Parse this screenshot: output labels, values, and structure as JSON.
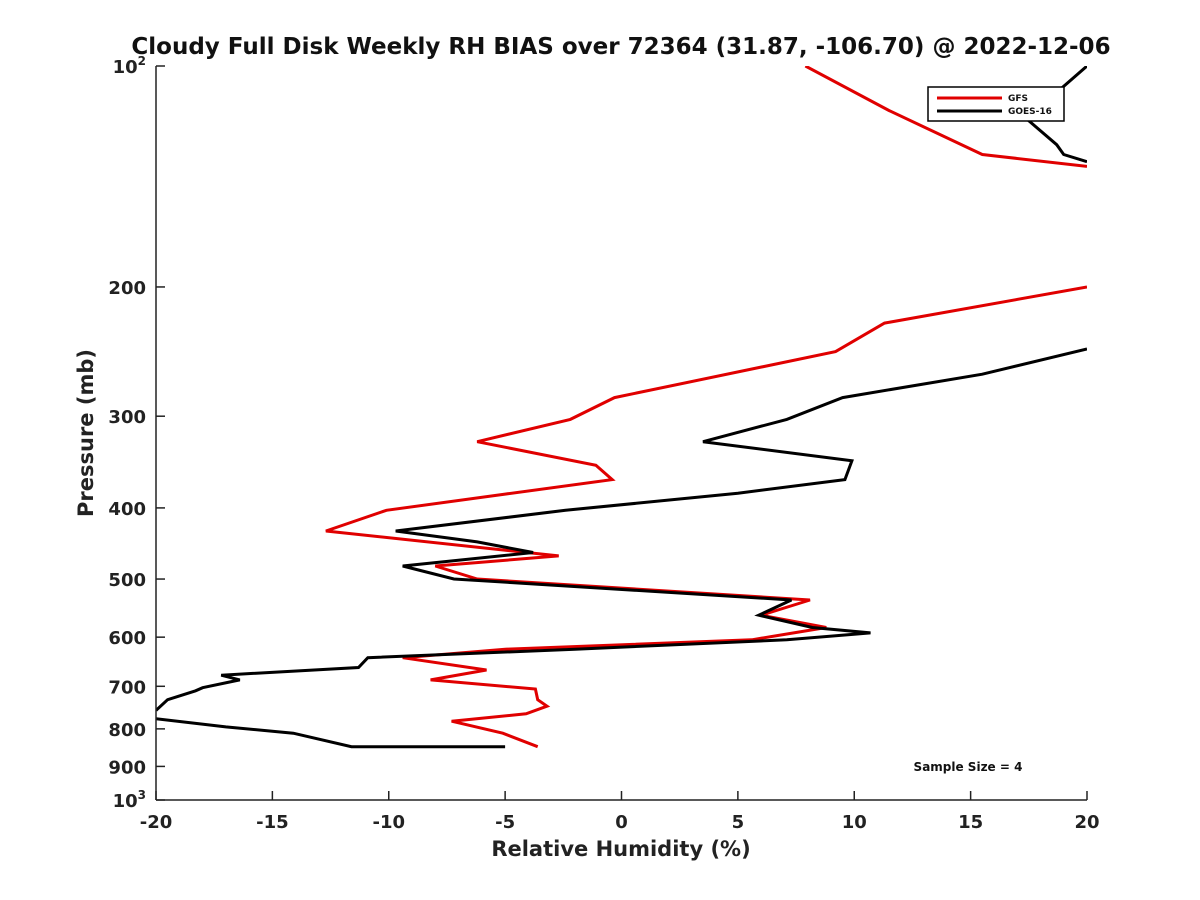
{
  "chart_data": {
    "type": "line",
    "title": "Cloudy Full Disk Weekly RH BIAS over 72364 (31.87, -106.70) @ 2022-12-06",
    "xlabel": "Relative Humidity (%)",
    "ylabel": "Pressure (mb)",
    "xlim": [
      -20,
      20
    ],
    "ylim": [
      100,
      1000
    ],
    "yscale": "log",
    "y_reversed": true,
    "x_ticks": [
      -20,
      -15,
      -10,
      -5,
      0,
      5,
      10,
      15,
      20
    ],
    "x_tick_labels": [
      "-20",
      "-15",
      "-10",
      "-5",
      "0",
      "5",
      "10",
      "15",
      "20"
    ],
    "y_ticks": [
      100,
      200,
      300,
      400,
      500,
      600,
      700,
      800,
      900,
      1000
    ],
    "y_tick_labels": [
      {
        "base": "10",
        "exp": "2"
      },
      {
        "base": "200",
        "exp": ""
      },
      {
        "base": "300",
        "exp": ""
      },
      {
        "base": "400",
        "exp": ""
      },
      {
        "base": "500",
        "exp": ""
      },
      {
        "base": "600",
        "exp": ""
      },
      {
        "base": "700",
        "exp": ""
      },
      {
        "base": "800",
        "exp": ""
      },
      {
        "base": "900",
        "exp": ""
      },
      {
        "base": "10",
        "exp": "3"
      }
    ],
    "legend_position": "top-right",
    "annotation": "Sample Size = 4",
    "series": [
      {
        "name": "GFS",
        "color": "#e00000",
        "points": [
          [
            7.9,
            100
          ],
          [
            11.5,
            115
          ],
          [
            15.5,
            132
          ],
          [
            20.0,
            137
          ],
          [
            null,
            160
          ],
          [
            20.0,
            200
          ],
          [
            11.3,
            224
          ],
          [
            9.2,
            245
          ],
          [
            -0.3,
            283
          ],
          [
            -2.2,
            303
          ],
          [
            -6.2,
            325
          ],
          [
            -1.1,
            350
          ],
          [
            -0.4,
            366
          ],
          [
            -5.0,
            383
          ],
          [
            -10.1,
            403
          ],
          [
            -12.7,
            430
          ],
          [
            -2.7,
            465
          ],
          [
            -8.0,
            480
          ],
          [
            -6.2,
            500
          ],
          [
            8.1,
            534
          ],
          [
            6.0,
            560
          ],
          [
            8.8,
            582
          ],
          [
            5.6,
            605
          ],
          [
            -5.0,
            623
          ],
          [
            -9.4,
            640
          ],
          [
            -5.8,
            665
          ],
          [
            -8.2,
            686
          ],
          [
            -3.7,
            706
          ],
          [
            -3.6,
            730
          ],
          [
            -3.2,
            745
          ],
          [
            -4.1,
            763
          ],
          [
            -7.3,
            781
          ],
          [
            -5.1,
            811
          ],
          [
            -3.6,
            846
          ]
        ]
      },
      {
        "name": "GOES-16",
        "color": "#000000",
        "points": [
          [
            20.0,
            100
          ],
          [
            17.4,
            118
          ],
          [
            18.7,
            128
          ],
          [
            19.0,
            132
          ],
          [
            20.0,
            135
          ],
          [
            null,
            160
          ],
          [
            20.0,
            243
          ],
          [
            15.5,
            263
          ],
          [
            9.5,
            283
          ],
          [
            7.1,
            303
          ],
          [
            3.5,
            325
          ],
          [
            9.9,
            345
          ],
          [
            9.6,
            366
          ],
          [
            5.0,
            382
          ],
          [
            -2.4,
            403
          ],
          [
            -9.7,
            430
          ],
          [
            -6.2,
            445
          ],
          [
            -3.8,
            460
          ],
          [
            -9.4,
            480
          ],
          [
            -7.2,
            500
          ],
          [
            7.3,
            534
          ],
          [
            5.9,
            560
          ],
          [
            8.2,
            582
          ],
          [
            10.7,
            592
          ],
          [
            7.1,
            605
          ],
          [
            -2.0,
            623
          ],
          [
            -10.9,
            640
          ],
          [
            -11.3,
            660
          ],
          [
            -17.2,
            676
          ],
          [
            -16.4,
            686
          ],
          [
            -18.0,
            703
          ],
          [
            -18.3,
            710
          ],
          [
            -19.5,
            730
          ],
          [
            -20.0,
            755
          ],
          [
            null,
            770
          ],
          [
            -20.0,
            775
          ],
          [
            -17.0,
            795
          ],
          [
            -14.1,
            811
          ],
          [
            -11.6,
            846
          ],
          [
            -5.0,
            846
          ]
        ]
      }
    ]
  }
}
